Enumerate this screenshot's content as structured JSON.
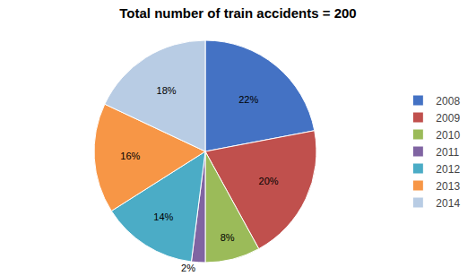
{
  "chart_data": {
    "type": "pie",
    "title": "Total number of train accidents = 200",
    "categories": [
      "2008",
      "2009",
      "2010",
      "2011",
      "2012",
      "2013",
      "2014"
    ],
    "values": [
      22,
      20,
      8,
      2,
      14,
      16,
      18
    ],
    "value_labels": [
      "22%",
      "20%",
      "8%",
      "2%",
      "14%",
      "16%",
      "18%"
    ],
    "colors": [
      "#4472C4",
      "#C0504D",
      "#9BBB59",
      "#8064A2",
      "#4BACC6",
      "#F79646",
      "#B8CCE4"
    ],
    "data_labels": true,
    "legend": "right"
  }
}
